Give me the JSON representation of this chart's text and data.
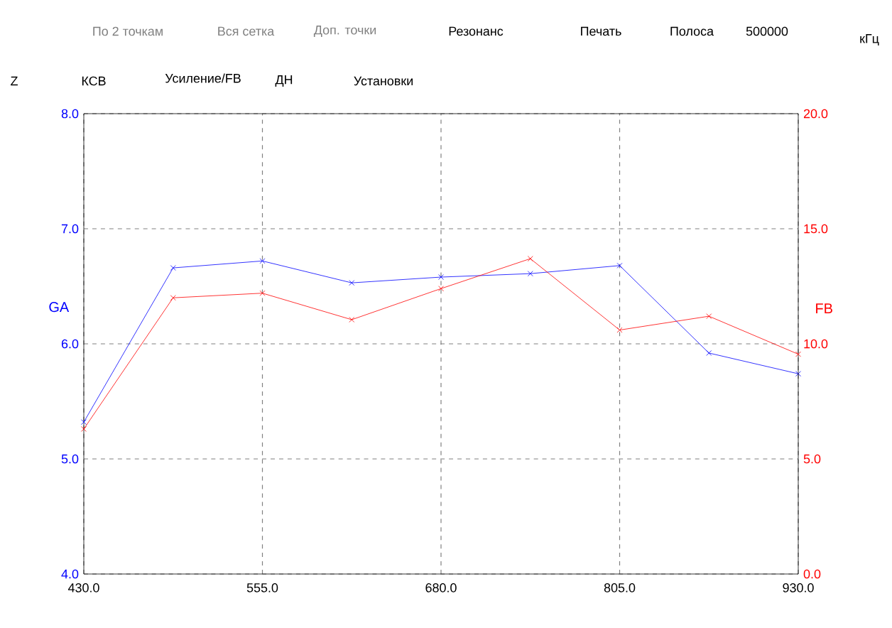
{
  "chart_data": {
    "type": "line",
    "x": [
      430,
      492.5,
      555,
      617.5,
      680,
      742.5,
      805,
      867.5,
      930
    ],
    "series": [
      {
        "name": null,
        "color": "#0000ff",
        "values": [
          5.32,
          6.66,
          6.72,
          6.53,
          6.58,
          6.61,
          6.68,
          5.92,
          5.74
        ]
      },
      {
        "name": null,
        "color": "#ff0000",
        "axis": "y2",
        "values": [
          6.3,
          12.0,
          12.2,
          11.05,
          12.4,
          13.7,
          10.6,
          11.2,
          9.55
        ]
      }
    ],
    "ylabel": "GA",
    "y2label": "FB",
    "xlim": [
      430,
      930
    ],
    "xticks": [
      {
        "value": 430,
        "label": "430.0"
      },
      {
        "value": 555,
        "label": "555.0"
      },
      {
        "value": 680,
        "label": "680.0"
      },
      {
        "value": 805,
        "label": "805.0"
      },
      {
        "value": 930,
        "label": "930.0"
      }
    ],
    "ylim": [
      4,
      8
    ],
    "yticks": [
      {
        "value": 4,
        "label": "4.0"
      },
      {
        "value": 5,
        "label": "5.0"
      },
      {
        "value": 6,
        "label": "6.0"
      },
      {
        "value": 7,
        "label": "7.0"
      },
      {
        "value": 8,
        "label": "8.0"
      }
    ],
    "y2lim": [
      0,
      20
    ],
    "y2ticks": [
      {
        "value": 0,
        "label": "0.0"
      },
      {
        "value": 5,
        "label": "5.0"
      },
      {
        "value": 10,
        "label": "10.0"
      },
      {
        "value": 15,
        "label": "15.0"
      },
      {
        "value": 20,
        "label": "20.0"
      }
    ],
    "grid": true,
    "marker": "cross",
    "line_style": "solid",
    "annotations": [
      "По 2 точкам",
      "Вся сетка",
      "Доп. точки",
      "Резонанс",
      "Печать",
      "Полоса",
      "500000",
      "кГц",
      "Z",
      "КСВ",
      "Усиление/FB",
      "ДН",
      "Установки"
    ]
  }
}
